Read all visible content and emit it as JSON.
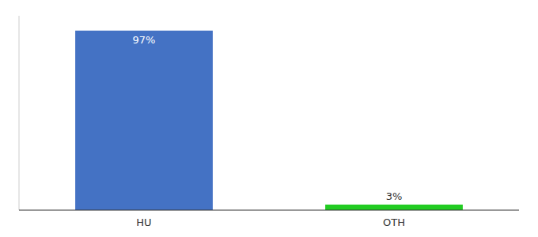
{
  "chart_data": {
    "type": "bar",
    "categories": [
      "HU",
      "OTH"
    ],
    "values": [
      97,
      3
    ],
    "value_labels": [
      "97%",
      "3%"
    ],
    "colors": [
      "#4472c4",
      "#22cc22"
    ],
    "ylim": [
      0,
      105
    ],
    "data_labels": true,
    "tick_labels": "x"
  }
}
